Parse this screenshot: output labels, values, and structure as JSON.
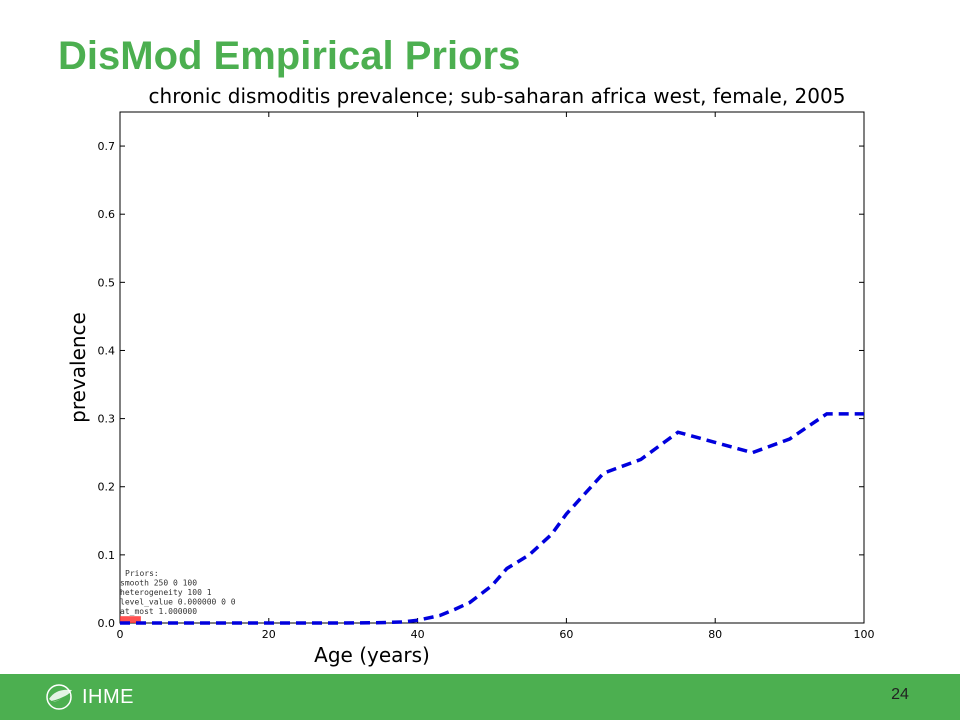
{
  "slide": {
    "title": "DisMod Empirical Priors",
    "page_number": "24"
  },
  "logo": {
    "text": "IHME",
    "icon": "ihme-leaf-icon"
  },
  "colors": {
    "title_green": "#4caf50",
    "footer_green": "#4caf50",
    "series_blue": "#0000dd",
    "data_red": "#ff3333"
  },
  "chart_data": {
    "type": "line",
    "title": "chronic dismoditis prevalence; sub-saharan africa west, female, 2005",
    "xlabel": "Age (years)",
    "ylabel": "prevalence",
    "xlim": [
      0,
      100
    ],
    "ylim": [
      0,
      0.75
    ],
    "x_ticks": [
      "0",
      "20",
      "40",
      "60",
      "80",
      "100"
    ],
    "y_ticks": [
      "0.0",
      "0.1",
      "0.2",
      "0.3",
      "0.4",
      "0.5",
      "0.6",
      "0.7"
    ],
    "grid": false,
    "series": [
      {
        "style": "dashed",
        "color": "#0000dd",
        "x": [
          0,
          10,
          20,
          30,
          35,
          38,
          40,
          43,
          45,
          47,
          50,
          52,
          55,
          58,
          60,
          65,
          70,
          75,
          80,
          85,
          90,
          95,
          100
        ],
        "y": [
          0,
          0,
          0,
          0,
          0.0005,
          0.0015,
          0.004,
          0.011,
          0.02,
          0.03,
          0.055,
          0.08,
          0.1,
          0.13,
          0.16,
          0.22,
          0.24,
          0.28,
          0.265,
          0.25,
          0.27,
          0.307,
          0.307
        ]
      }
    ],
    "data_rects": [
      {
        "x0": 0,
        "x1": 2,
        "y": 0.01,
        "color": "#ff3333"
      }
    ],
    "annotation": [
      "Priors:",
      "smooth 250 0 100",
      "heterogeneity 100 1",
      "level_value 0.000000 0 0",
      "at_most 1.000000"
    ]
  }
}
